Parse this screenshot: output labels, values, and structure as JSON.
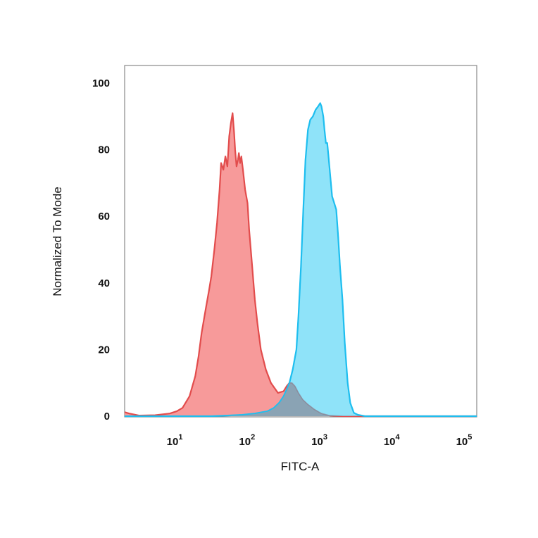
{
  "chart_data": {
    "type": "area",
    "xlabel": "FITC-A",
    "ylabel": "Normalized To Mode",
    "xscale": "log",
    "xlim": [
      1.9,
      140000
    ],
    "ylim": [
      0,
      105
    ],
    "yticks": [
      0,
      20,
      40,
      60,
      80,
      100
    ],
    "yticklabels": [
      "0",
      "20",
      "40",
      "60",
      "80",
      "100"
    ],
    "xticks": [
      10,
      100,
      1000,
      10000,
      100000
    ],
    "xticklabels": [
      {
        "base": "10",
        "exp": "1"
      },
      {
        "base": "10",
        "exp": "2"
      },
      {
        "base": "10",
        "exp": "3"
      },
      {
        "base": "10",
        "exp": "4"
      },
      {
        "base": "10",
        "exp": "5"
      }
    ],
    "grid": false,
    "series": [
      {
        "colors": {
          "fill": "#f79a9a",
          "line": "#e24c4c"
        },
        "points": [
          [
            1.9,
            1.2
          ],
          [
            2.2,
            0.8
          ],
          [
            3,
            0.2
          ],
          [
            5,
            0.3
          ],
          [
            8,
            0.8
          ],
          [
            10,
            1.5
          ],
          [
            12,
            2.5
          ],
          [
            15,
            6
          ],
          [
            18,
            12
          ],
          [
            20,
            18
          ],
          [
            22,
            25
          ],
          [
            25,
            32
          ],
          [
            28,
            38
          ],
          [
            30,
            42
          ],
          [
            33,
            50
          ],
          [
            36,
            58
          ],
          [
            39,
            68
          ],
          [
            41,
            76
          ],
          [
            44,
            74
          ],
          [
            47,
            78
          ],
          [
            50,
            75
          ],
          [
            53,
            84
          ],
          [
            56,
            88
          ],
          [
            59,
            91
          ],
          [
            62,
            85
          ],
          [
            64,
            80
          ],
          [
            67,
            75
          ],
          [
            70,
            77
          ],
          [
            72,
            79
          ],
          [
            75,
            76
          ],
          [
            78,
            78
          ],
          [
            82,
            74
          ],
          [
            88,
            68
          ],
          [
            95,
            64
          ],
          [
            100,
            56
          ],
          [
            110,
            45
          ],
          [
            120,
            35
          ],
          [
            130,
            28
          ],
          [
            145,
            20
          ],
          [
            170,
            14
          ],
          [
            200,
            10
          ],
          [
            250,
            7
          ],
          [
            300,
            7.5
          ],
          [
            330,
            9
          ],
          [
            360,
            10
          ],
          [
            390,
            10
          ],
          [
            430,
            9
          ],
          [
            480,
            7
          ],
          [
            550,
            5
          ],
          [
            650,
            3.5
          ],
          [
            800,
            2
          ],
          [
            1000,
            0.8
          ],
          [
            1300,
            0.2
          ],
          [
            2000,
            0
          ],
          [
            140000,
            0
          ]
        ]
      },
      {
        "colors": {
          "fill": "#8fe3f9",
          "line": "#1ebeef"
        },
        "points": [
          [
            1.9,
            0
          ],
          [
            30,
            0
          ],
          [
            50,
            0.2
          ],
          [
            80,
            0.4
          ],
          [
            120,
            0.8
          ],
          [
            180,
            1.5
          ],
          [
            220,
            2.5
          ],
          [
            260,
            4
          ],
          [
            300,
            6
          ],
          [
            330,
            8
          ],
          [
            360,
            10
          ],
          [
            400,
            14
          ],
          [
            450,
            20
          ],
          [
            480,
            30
          ],
          [
            520,
            45
          ],
          [
            560,
            62
          ],
          [
            600,
            77
          ],
          [
            650,
            86
          ],
          [
            700,
            89
          ],
          [
            760,
            90
          ],
          [
            830,
            92
          ],
          [
            900,
            93
          ],
          [
            960,
            94
          ],
          [
            1000,
            93
          ],
          [
            1060,
            90
          ],
          [
            1100,
            86
          ],
          [
            1150,
            82
          ],
          [
            1200,
            82
          ],
          [
            1250,
            78
          ],
          [
            1300,
            74
          ],
          [
            1400,
            66
          ],
          [
            1500,
            64
          ],
          [
            1600,
            62
          ],
          [
            1700,
            54
          ],
          [
            1800,
            45
          ],
          [
            1950,
            35
          ],
          [
            2100,
            22
          ],
          [
            2300,
            10
          ],
          [
            2500,
            4
          ],
          [
            2800,
            1
          ],
          [
            3200,
            0.4
          ],
          [
            4000,
            0
          ],
          [
            140000,
            0
          ]
        ]
      }
    ],
    "overlap_color": "#8aa3b4"
  }
}
